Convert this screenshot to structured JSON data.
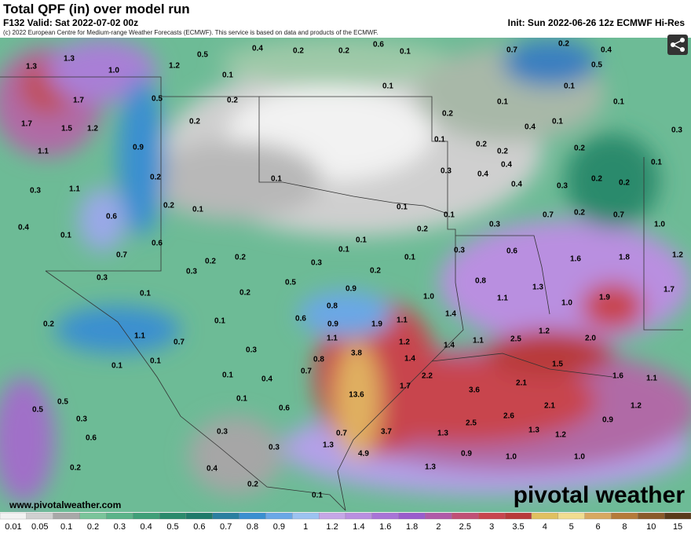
{
  "header": {
    "title": "Total QPF (in) over model run",
    "valid": "F132 Valid: Sat 2022-07-02 00z",
    "copyright": "(c) 2022 European Centre for Medium-range Weather Forecasts (ECMWF). This service is based on data and products of the ECMWF.",
    "init": "Init: Sun 2022-06-26 12z ECMWF Hi-Res"
  },
  "footer": {
    "site": "www.pivotalweather.com",
    "brand": "pivotal weather"
  },
  "legend": {
    "ticks": [
      "0.01",
      "0.05",
      "0.1",
      "0.2",
      "0.3",
      "0.4",
      "0.5",
      "0.6",
      "0.7",
      "0.8",
      "0.9",
      "1",
      "1.2",
      "1.4",
      "1.6",
      "1.8",
      "2",
      "2.5",
      "3",
      "3.5",
      "4",
      "5",
      "6",
      "8",
      "10",
      "15"
    ],
    "colors": [
      "#f2f2f2",
      "#d0d0d0",
      "#a8a8a8",
      "#7ac49a",
      "#5bb389",
      "#3f9f78",
      "#2a8a6c",
      "#1f7a6a",
      "#2a7fa0",
      "#3a8fd0",
      "#6aa7e6",
      "#9cc2f0",
      "#c5a6e6",
      "#b98fe0",
      "#a874d6",
      "#9a5ccc",
      "#b05aa8",
      "#c05076",
      "#c8454e",
      "#b83a3a",
      "#e0c060",
      "#f0dc90",
      "#d8a860",
      "#b57a3a",
      "#8a5a2a",
      "#5a3a1a"
    ]
  },
  "map": {
    "labels": [
      "1.3",
      "1.3",
      "1.0",
      "1.2",
      "0.5",
      "0.4",
      "0.2",
      "0.2",
      "0.6",
      "0.1",
      "0.7",
      "0.2",
      "0.4",
      "0.5",
      "0.1",
      "0.5",
      "0.2",
      "1.7",
      "1.7",
      "1.5",
      "1.2",
      "0.2",
      "1.1",
      "0.9",
      "0.1",
      "0.2",
      "0.1",
      "0.1",
      "0.1",
      "0.1",
      "0.4",
      "0.3",
      "0.1",
      "0.2",
      "0.2",
      "0.2",
      "0.4",
      "0.1",
      "0.2",
      "0.3",
      "1.1",
      "0.3",
      "0.4",
      "0.4",
      "0.3",
      "0.2",
      "0.2",
      "0.1",
      "0.2",
      "0.1",
      "0.1",
      "0.1",
      "0.7",
      "0.2",
      "0.7",
      "0.6",
      "0.4",
      "0.1",
      "1.0",
      "0.3",
      "0.2",
      "0.6",
      "0.7",
      "0.2",
      "0.2",
      "0.1",
      "0.1",
      "0.1",
      "0.3",
      "0.6",
      "1.6",
      "1.8",
      "1.2",
      "0.3",
      "0.3",
      "0.3",
      "0.2",
      "0.5",
      "0.1",
      "0.2",
      "0.9",
      "0.8",
      "1.3",
      "1.9",
      "1.7",
      "1.0",
      "1.1",
      "1.0",
      "0.8",
      "0.2",
      "0.1",
      "0.6",
      "0.9",
      "1.9",
      "1.1",
      "1.4",
      "1.1",
      "0.7",
      "3.8",
      "1.1",
      "1.2",
      "1.4",
      "1.1",
      "2.5",
      "1.2",
      "2.0",
      "0.3",
      "0.1",
      "0.1",
      "0.8",
      "1.4",
      "2.2",
      "1.5",
      "1.6",
      "1.1",
      "0.7",
      "0.4",
      "0.1",
      "0.5",
      "0.1",
      "13.6",
      "1.7",
      "3.6",
      "2.1",
      "0.5",
      "0.3",
      "0.6",
      "2.1",
      "1.2",
      "2.6",
      "0.9",
      "2.5",
      "1.3",
      "0.3",
      "1.2",
      "0.6",
      "3.7",
      "1.3",
      "0.7",
      "1.3",
      "0.3",
      "4.9",
      "0.9",
      "1.0",
      "1.0",
      "0.2",
      "0.4",
      "1.3",
      "0.2",
      "0.1"
    ]
  }
}
